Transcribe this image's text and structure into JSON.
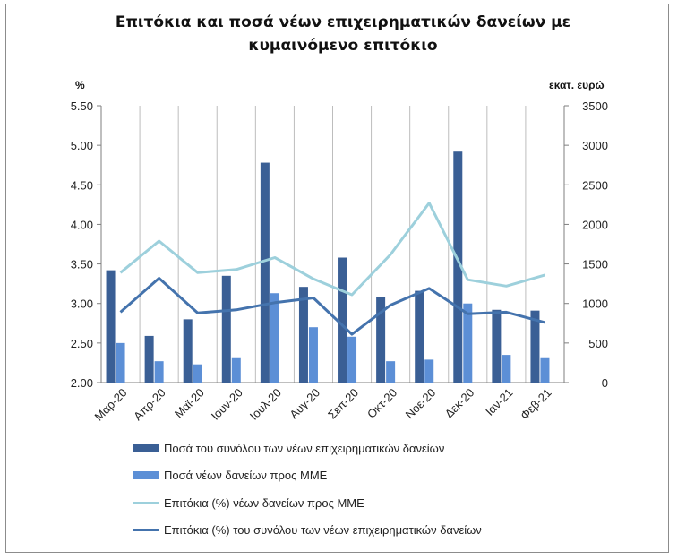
{
  "chart_data": {
    "type": "bar",
    "title_lines": [
      "Επιτόκια και ποσά νέων επιχειρηματικών δανείων με",
      "κυμαινόμενο επιτόκιο"
    ],
    "y_left_label": "%",
    "y_right_label": "εκατ. ευρώ",
    "y_left_lim": [
      2.0,
      5.5
    ],
    "y_left_ticks": [
      "2.00",
      "2.50",
      "3.00",
      "3.50",
      "4.00",
      "4.50",
      "5.00",
      "5.50"
    ],
    "y_right_lim": [
      0,
      3500
    ],
    "y_right_ticks": [
      "0",
      "500",
      "1000",
      "1500",
      "2000",
      "2500",
      "3000",
      "3500"
    ],
    "categories": [
      "Μαρ-20",
      "Απρ-20",
      "Μαϊ-20",
      "Ιουν-20",
      "Ιουλ-20",
      "Αυγ-20",
      "Σεπ-20",
      "Οκτ-20",
      "Νοε-20",
      "Δεκ-20",
      "Ιαν-21",
      "Φεβ-21"
    ],
    "series": [
      {
        "name": "Ποσά του συνόλου των νέων επιχειρηματικών δανείων",
        "kind": "bar",
        "axis": "right",
        "color": "#3a5f95",
        "values": [
          1420,
          590,
          800,
          1350,
          2780,
          1210,
          1580,
          1080,
          1160,
          2920,
          920,
          910
        ]
      },
      {
        "name": "Ποσά νέων δανείων προς ΜΜΕ",
        "kind": "bar",
        "axis": "right",
        "color": "#5c8fd6",
        "values": [
          500,
          270,
          230,
          320,
          1130,
          700,
          580,
          270,
          290,
          1000,
          350,
          320
        ]
      },
      {
        "name": "Επιτόκια (%) νέων δανείων προς ΜΜΕ",
        "kind": "line",
        "axis": "left",
        "color": "#9dd0dc",
        "values": [
          3.39,
          3.79,
          3.39,
          3.43,
          3.58,
          3.31,
          3.11,
          3.62,
          4.27,
          3.3,
          3.22,
          3.36
        ]
      },
      {
        "name": "Επιτόκια (%) του συνόλου των νέων επιχειρηματικών δανείων",
        "kind": "line",
        "axis": "left",
        "color": "#4473ad",
        "values": [
          2.89,
          3.32,
          2.88,
          2.92,
          3.01,
          3.07,
          2.61,
          2.98,
          3.19,
          2.87,
          2.89,
          2.76
        ]
      }
    ],
    "grid": "vertical",
    "legend_position": "bottom"
  }
}
